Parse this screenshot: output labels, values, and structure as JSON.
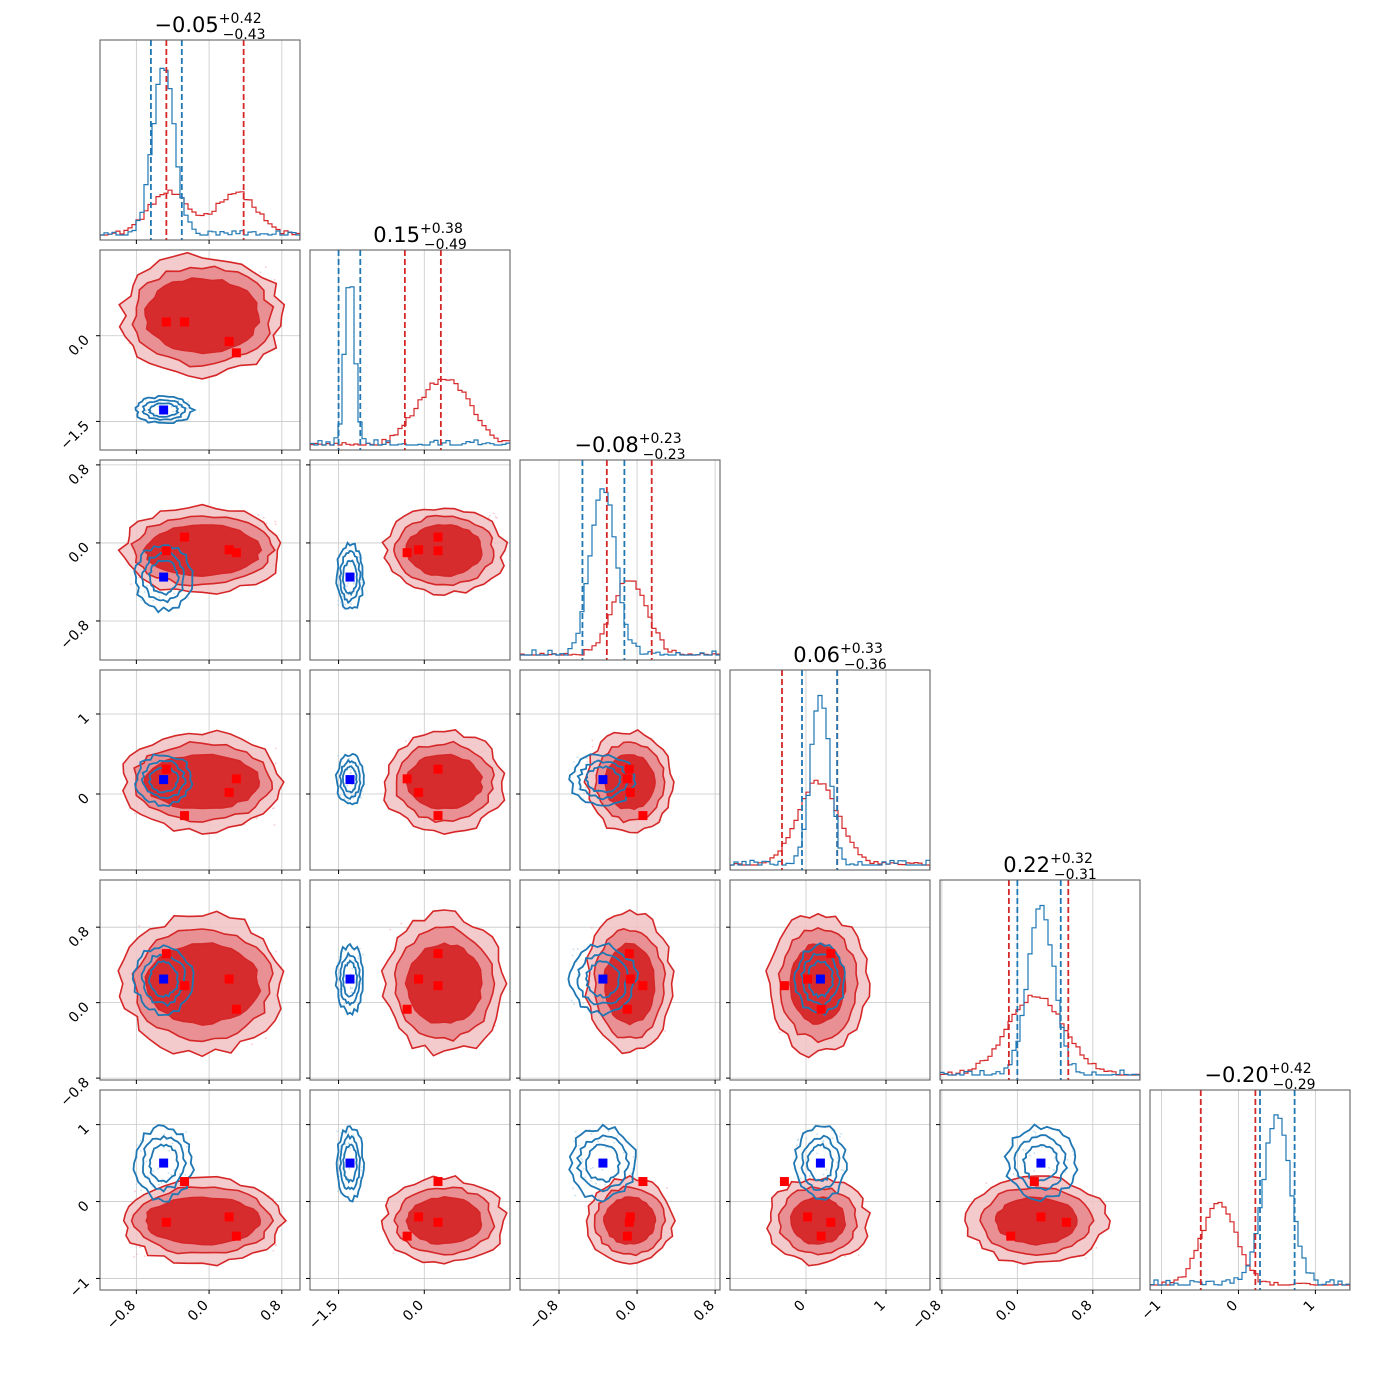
{
  "chart_data": {
    "type": "corner",
    "n_params": 6,
    "grid": true,
    "colors": {
      "posterior_a": "#d62728",
      "posterior_b": "#1f77b4",
      "truth_a_marker": "#ff0000",
      "truth_b_marker": "#0000ff"
    },
    "titles": [
      {
        "median": "−0.05",
        "plus": "+0.42",
        "minus": "−0.43"
      },
      {
        "median": "0.15",
        "plus": "+0.38",
        "minus": "−0.49"
      },
      {
        "median": "−0.08",
        "plus": "+0.23",
        "minus": "−0.23"
      },
      {
        "median": "0.06",
        "plus": "+0.33",
        "minus": "−0.36"
      },
      {
        "median": "0.22",
        "plus": "+0.32",
        "minus": "−0.31"
      },
      {
        "median": "−0.20",
        "plus": "+0.42",
        "minus": "−0.29"
      }
    ],
    "ranges": [
      [
        -1.2,
        1.0
      ],
      [
        -2.0,
        1.5
      ],
      [
        -1.2,
        0.85
      ],
      [
        -0.95,
        1.55
      ],
      [
        -0.82,
        1.3
      ],
      [
        -1.15,
        1.45
      ]
    ],
    "tick_labels": [
      [
        {
          "v": -0.8,
          "t": "−0.8"
        },
        {
          "v": 0.0,
          "t": "0.0"
        },
        {
          "v": 0.8,
          "t": "0.8"
        }
      ],
      [
        {
          "v": -1.5,
          "t": "−1.5"
        },
        {
          "v": 0.0,
          "t": "0.0"
        }
      ],
      [
        {
          "v": -0.8,
          "t": "−0.8"
        },
        {
          "v": 0.0,
          "t": "0.0"
        },
        {
          "v": 0.8,
          "t": "0.8"
        }
      ],
      [
        {
          "v": 0,
          "t": "0"
        },
        {
          "v": 1,
          "t": "1"
        }
      ],
      [
        {
          "v": -0.8,
          "t": "−0.8"
        },
        {
          "v": 0.0,
          "t": "0.0"
        },
        {
          "v": 0.8,
          "t": "0.8"
        }
      ],
      [
        {
          "v": -1,
          "t": "−1"
        },
        {
          "v": 0,
          "t": "0"
        },
        {
          "v": 1,
          "t": "1"
        }
      ]
    ],
    "posterior_a": {
      "color": "#d62728",
      "modes": [
        [
          -0.45,
          0.1,
          -0.15,
          0.2,
          0.3,
          -0.3
        ],
        [
          0.3,
          0.6,
          0.0,
          0.1,
          0.1,
          -0.2
        ]
      ],
      "spreads": [
        0.22,
        0.35,
        0.16,
        0.25,
        0.28,
        0.22
      ],
      "quantiles": [
        [
          -0.47,
          0.38
        ],
        [
          -0.34,
          0.29
        ],
        [
          -0.31,
          0.15
        ],
        [
          -0.3,
          0.39
        ],
        [
          -0.09,
          0.54
        ],
        [
          -0.49,
          0.22
        ]
      ],
      "markers": [
        [
          -0.47,
          0.24,
          -0.08,
          0.31,
          0.52,
          -0.27
        ],
        [
          -0.27,
          0.24,
          0.06,
          -0.27,
          0.18,
          0.26
        ],
        [
          0.22,
          -0.1,
          -0.07,
          0.02,
          0.25,
          -0.2
        ],
        [
          0.3,
          -0.3,
          -0.1,
          0.19,
          -0.07,
          -0.45
        ]
      ]
    },
    "posterior_b": {
      "color": "#1f77b4",
      "center": [
        -0.5,
        -1.3,
        -0.35,
        0.18,
        0.25,
        0.5
      ],
      "spreads": [
        0.12,
        0.09,
        0.13,
        0.12,
        0.14,
        0.18
      ],
      "quantiles": [
        [
          -0.64,
          -0.3
        ],
        [
          -1.5,
          -1.12
        ],
        [
          -0.56,
          -0.13
        ],
        [
          -0.05,
          0.39
        ],
        [
          0.0,
          0.46
        ],
        [
          0.28,
          0.73
        ]
      ]
    }
  }
}
